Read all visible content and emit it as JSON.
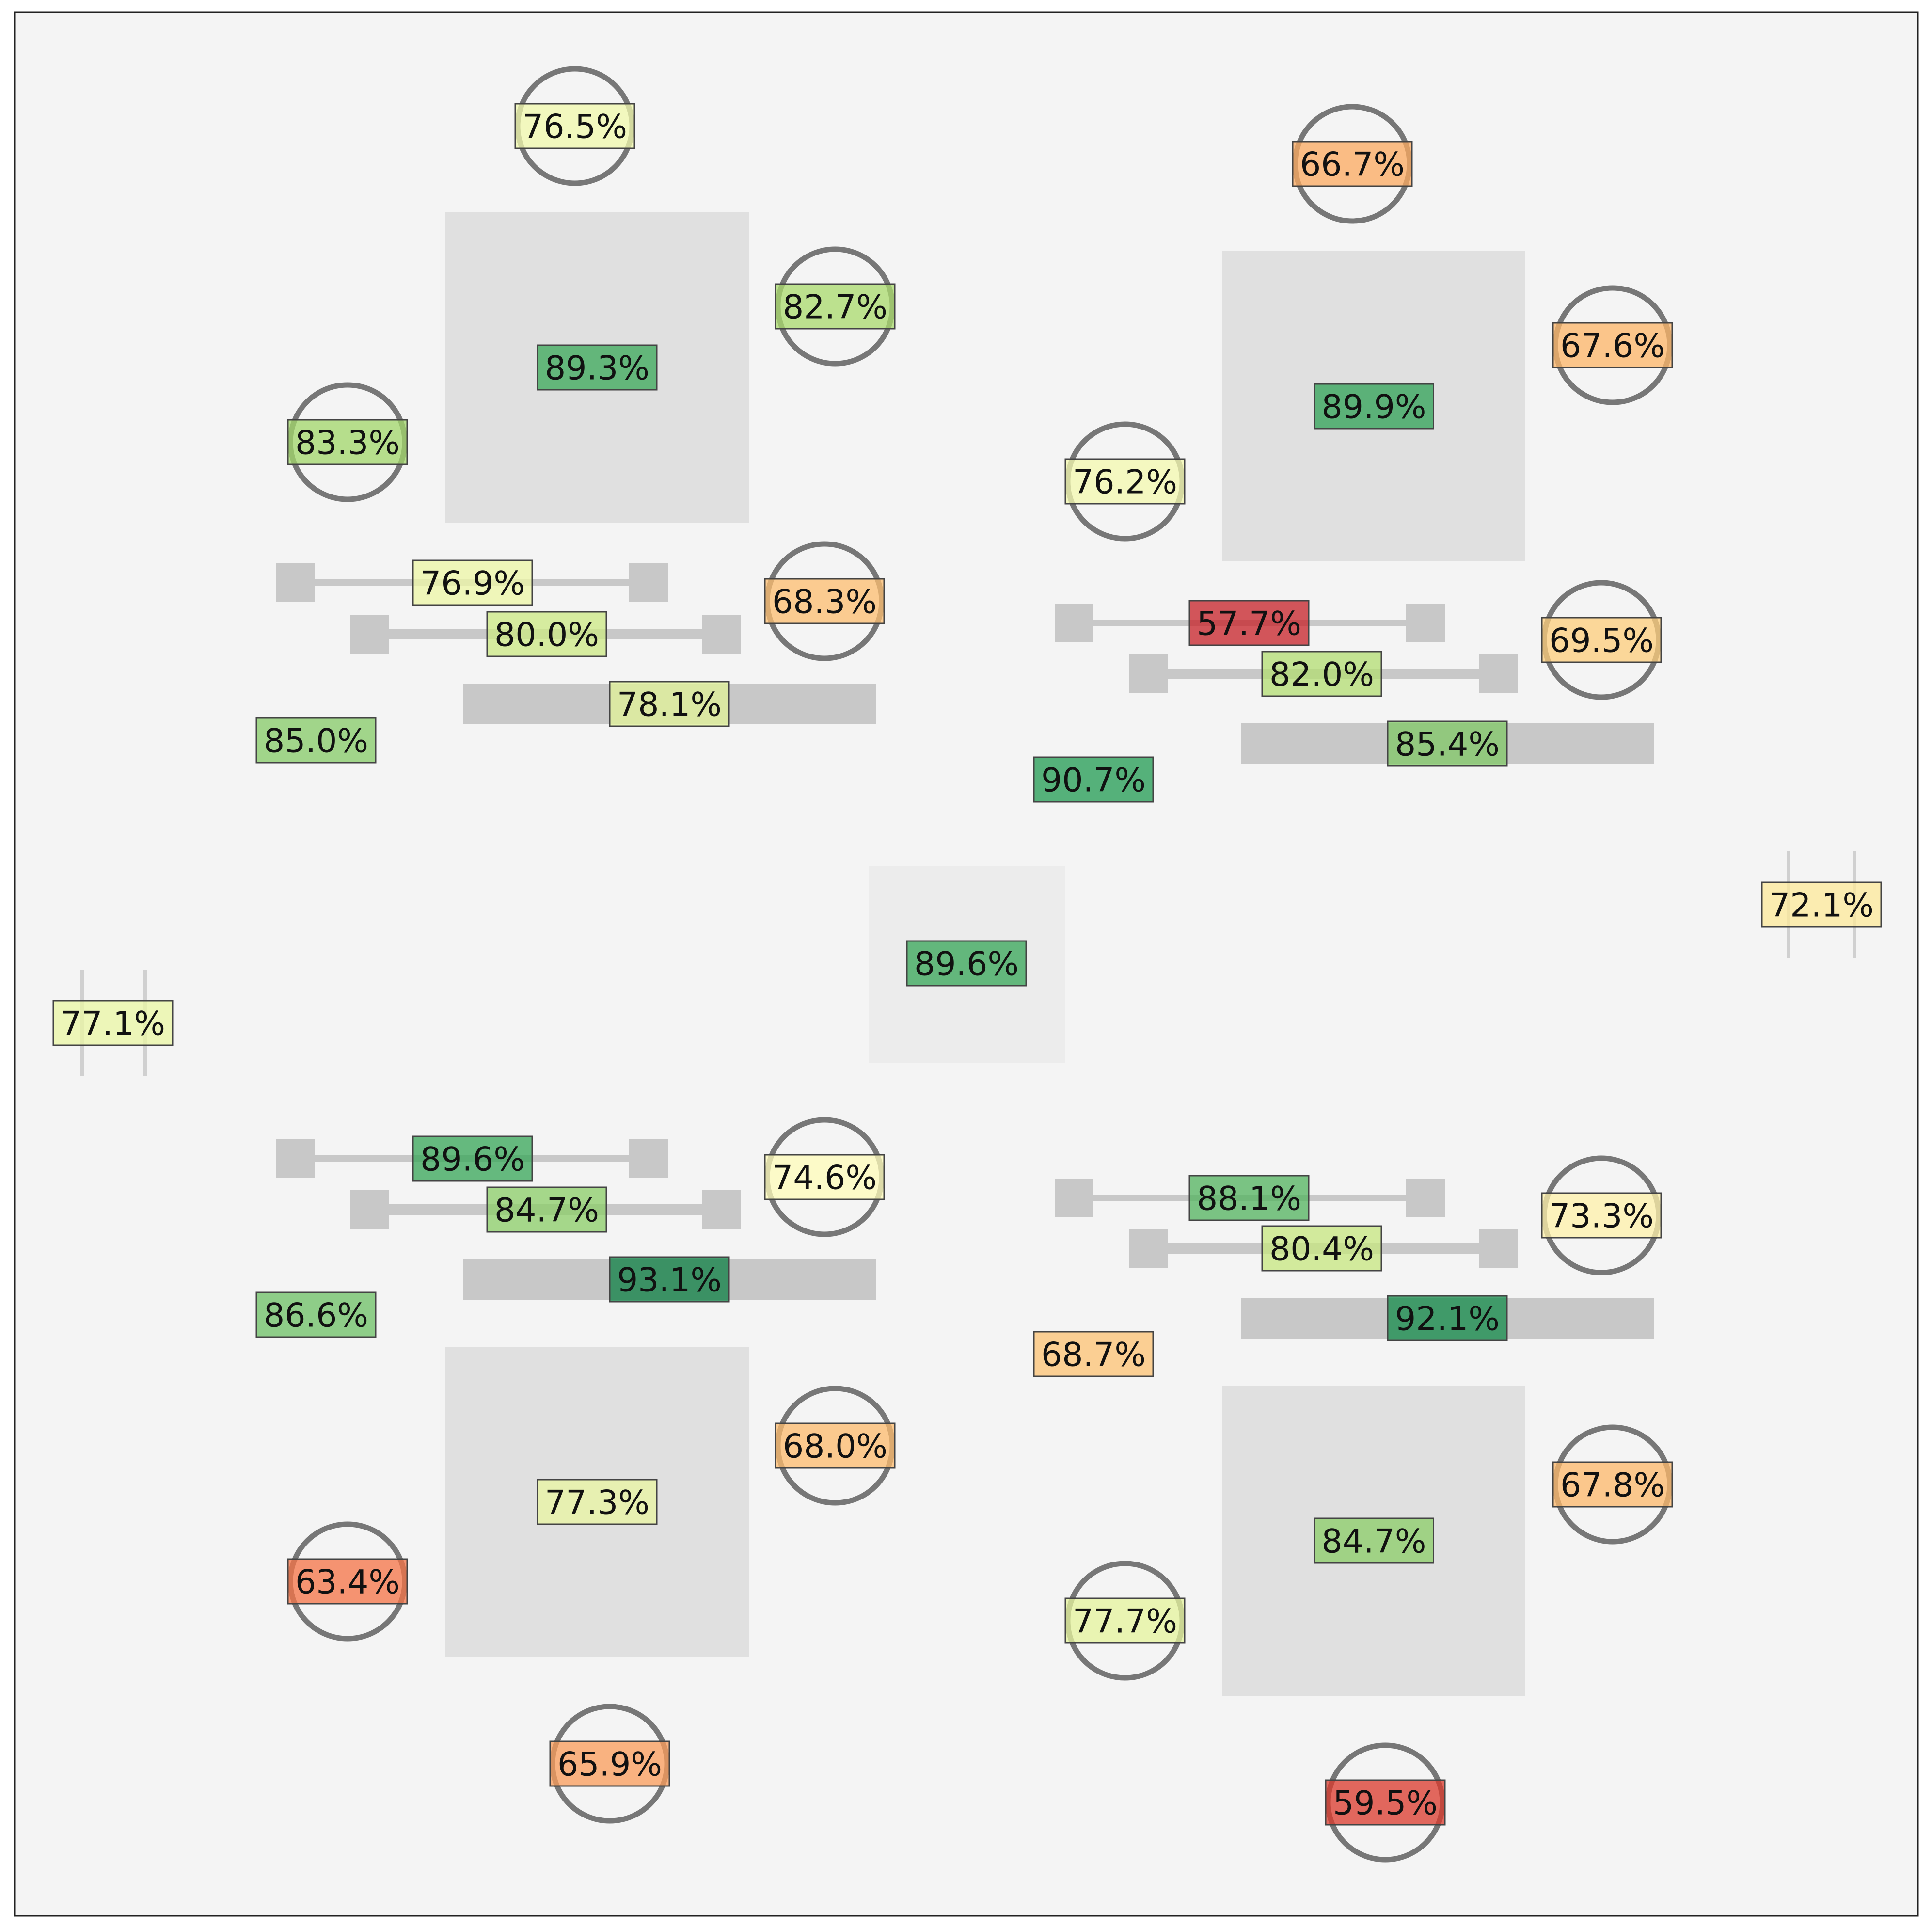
{
  "colors": {
    "background": "#f4f4f4",
    "table": "#e0e0e0",
    "center_table": "#ececec",
    "desk": "#c8c8c8",
    "seat_ring": "#777777",
    "label_border": "#444444"
  },
  "color_scale": {
    "type": "diverging",
    "name": "RdYlGn",
    "domain_percent": [
      55,
      95
    ]
  },
  "center_display": {
    "value": "89.6%",
    "percent": 89.6
  },
  "side_markers": [
    {
      "id": "left",
      "value": "77.1%",
      "percent": 77.1
    },
    {
      "id": "right",
      "value": "72.1%",
      "percent": 72.1
    }
  ],
  "clusters": [
    {
      "id": "top-left",
      "table": {
        "value": "89.3%",
        "percent": 89.3
      },
      "seats": [
        {
          "value": "76.5%",
          "percent": 76.5
        },
        {
          "value": "82.7%",
          "percent": 82.7
        },
        {
          "value": "83.3%",
          "percent": 83.3
        },
        {
          "value": "68.3%",
          "percent": 68.3
        }
      ],
      "rails": [
        {
          "value": "76.9%",
          "percent": 76.9
        },
        {
          "value": "80.0%",
          "percent": 80.0
        }
      ],
      "desk": {
        "value": "78.1%",
        "percent": 78.1
      },
      "station": {
        "value": "85.0%",
        "percent": 85.0
      }
    },
    {
      "id": "top-right",
      "table": {
        "value": "89.9%",
        "percent": 89.9
      },
      "seats": [
        {
          "value": "66.7%",
          "percent": 66.7
        },
        {
          "value": "67.6%",
          "percent": 67.6
        },
        {
          "value": "76.2%",
          "percent": 76.2
        },
        {
          "value": "69.5%",
          "percent": 69.5
        }
      ],
      "rails": [
        {
          "value": "57.7%",
          "percent": 57.7
        },
        {
          "value": "82.0%",
          "percent": 82.0
        }
      ],
      "desk": {
        "value": "85.4%",
        "percent": 85.4
      },
      "station": {
        "value": "90.7%",
        "percent": 90.7
      }
    },
    {
      "id": "bottom-left",
      "table": {
        "value": "77.3%",
        "percent": 77.3
      },
      "seats": [
        {
          "value": "74.6%",
          "percent": 74.6
        },
        {
          "value": "68.0%",
          "percent": 68.0
        },
        {
          "value": "63.4%",
          "percent": 63.4
        },
        {
          "value": "65.9%",
          "percent": 65.9
        }
      ],
      "rails": [
        {
          "value": "89.6%",
          "percent": 89.6
        },
        {
          "value": "84.7%",
          "percent": 84.7
        }
      ],
      "desk": {
        "value": "93.1%",
        "percent": 93.1
      },
      "station": {
        "value": "86.6%",
        "percent": 86.6
      }
    },
    {
      "id": "bottom-right",
      "table": {
        "value": "84.7%",
        "percent": 84.7
      },
      "seats": [
        {
          "value": "73.3%",
          "percent": 73.3
        },
        {
          "value": "67.8%",
          "percent": 67.8
        },
        {
          "value": "77.7%",
          "percent": 77.7
        },
        {
          "value": "59.5%",
          "percent": 59.5
        }
      ],
      "rails": [
        {
          "value": "88.1%",
          "percent": 88.1
        },
        {
          "value": "80.4%",
          "percent": 80.4
        }
      ],
      "desk": {
        "value": "92.1%",
        "percent": 92.1
      },
      "station": {
        "value": "68.7%",
        "percent": 68.7
      }
    }
  ]
}
